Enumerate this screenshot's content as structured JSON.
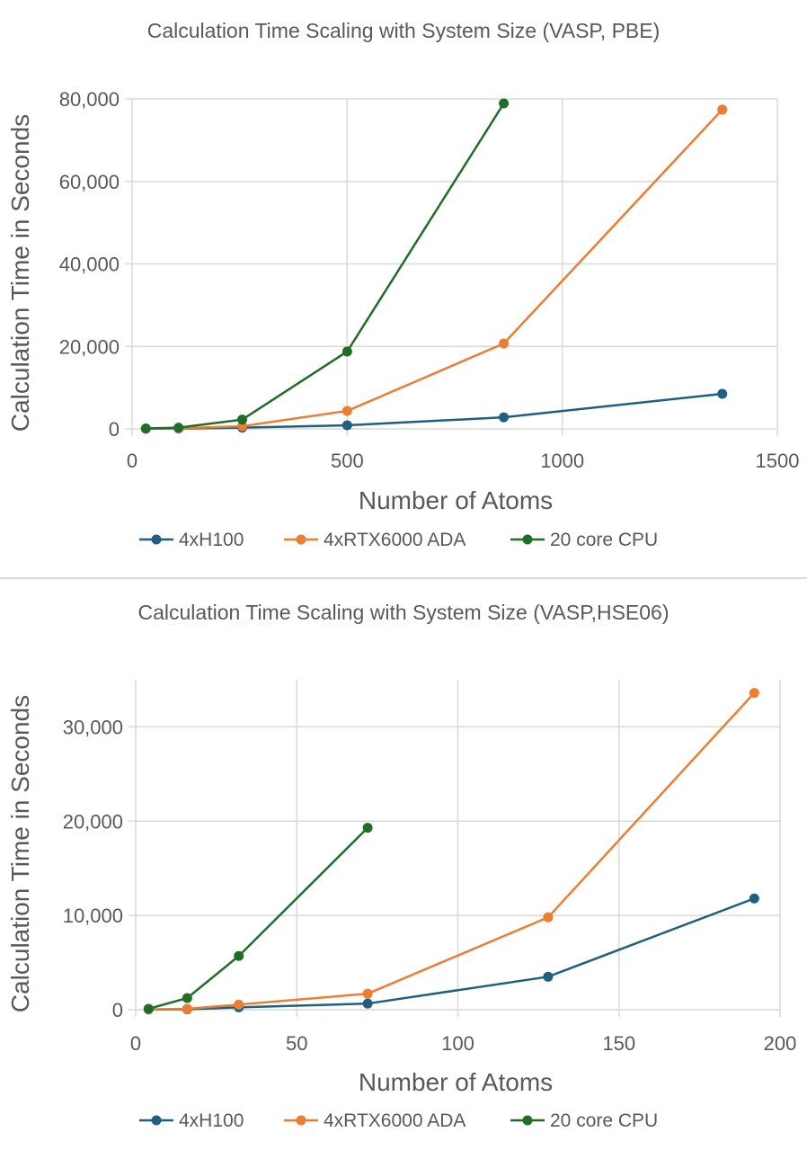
{
  "chart_data": [
    {
      "type": "line",
      "title": "Calculation Time Scaling with System Size (VASP, PBE)",
      "xlabel": "Number of Atoms",
      "ylabel": "Calculation Time in Seconds",
      "xlim": [
        0,
        1500
      ],
      "ylim": [
        0,
        80000
      ],
      "xticks": [
        0,
        500,
        1000,
        1500
      ],
      "xtick_labels": [
        "0",
        "500",
        "1000",
        "1500"
      ],
      "yticks": [
        0,
        20000,
        40000,
        60000,
        80000
      ],
      "ytick_labels": [
        "0",
        "20,000",
        "40,000",
        "60,000",
        "80,000"
      ],
      "grid": true,
      "legend": "bottom",
      "series": [
        {
          "name": "4xH100",
          "color": "#1f5f82",
          "x": [
            32,
            108,
            256,
            500,
            864,
            1372
          ],
          "y": [
            30,
            80,
            300,
            870,
            2800,
            8500
          ]
        },
        {
          "name": "4xRTX6000 ADA",
          "color": "#ed7d31",
          "x": [
            32,
            108,
            256,
            500,
            864,
            1372
          ],
          "y": [
            50,
            150,
            650,
            4360,
            20700,
            77400
          ]
        },
        {
          "name": "20 core CPU",
          "color": "#1e6e28",
          "x": [
            32,
            108,
            256,
            500,
            864
          ],
          "y": [
            100,
            300,
            2250,
            18750,
            78900
          ]
        }
      ]
    },
    {
      "type": "line",
      "title": "Calculation Time Scaling with System Size (VASP,HSE06)",
      "xlabel": "Number of Atoms",
      "ylabel": "Calculation Time in Seconds",
      "xlim": [
        0,
        200
      ],
      "ylim": [
        0,
        35000
      ],
      "xticks": [
        0,
        50,
        100,
        150,
        200
      ],
      "xtick_labels": [
        "0",
        "50",
        "100",
        "150",
        "200"
      ],
      "yticks": [
        0,
        10000,
        20000,
        30000
      ],
      "ytick_labels": [
        "0",
        "10,000",
        "20,000",
        "30,000"
      ],
      "grid": true,
      "legend": "bottom",
      "series": [
        {
          "name": "4xH100",
          "color": "#1f5f82",
          "x": [
            4,
            16,
            32,
            72,
            128,
            192
          ],
          "y": [
            20,
            50,
            250,
            650,
            3500,
            11800
          ]
        },
        {
          "name": "4xRTX6000 ADA",
          "color": "#ed7d31",
          "x": [
            4,
            16,
            32,
            72,
            128,
            192
          ],
          "y": [
            30,
            100,
            550,
            1700,
            9800,
            33600
          ]
        },
        {
          "name": "20 core CPU",
          "color": "#1e6e28",
          "x": [
            4,
            16,
            32,
            72
          ],
          "y": [
            100,
            1240,
            5700,
            19300
          ]
        }
      ]
    }
  ]
}
